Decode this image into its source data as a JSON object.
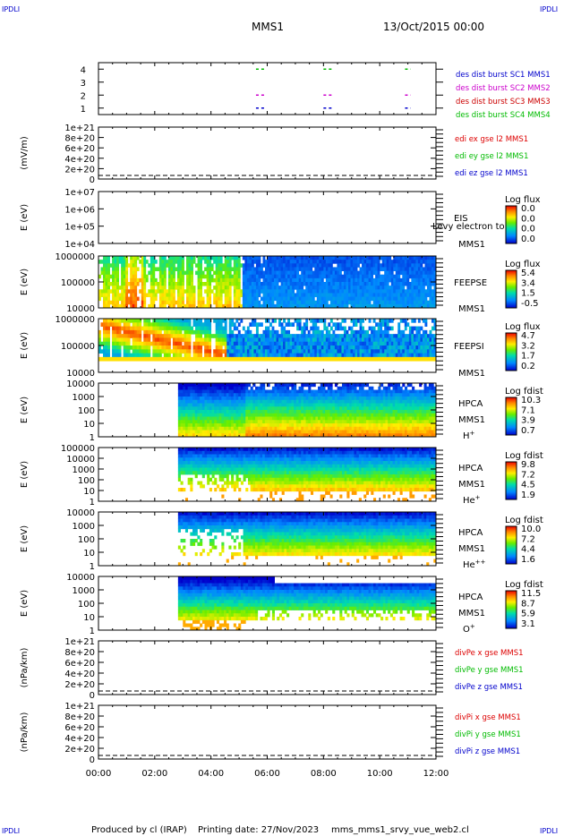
{
  "corner_label": "IPDLI",
  "header": {
    "mission": "MMS1",
    "datetime": "13/Oct/2015 00:00"
  },
  "footer": {
    "produced_by": "Produced by cl (IRAP)",
    "printing_date": "Printing date: 27/Nov/2023",
    "script_name": "mms_mms1_srvy_vue_web2.cl"
  },
  "colors": {
    "mms1": "#0000cc",
    "mms2": "#cc00cc",
    "mms3": "#cc0000",
    "mms4": "#00bb00",
    "x_component": "#dd0000",
    "y_component": "#00bb00",
    "z_component": "#0000cc"
  },
  "chart_data": [
    {
      "type": "scatter",
      "name": "burst-availability",
      "yticks": [
        "1",
        "2",
        "3",
        "4"
      ],
      "ylim": [
        0.5,
        4.5
      ],
      "legend": [
        {
          "label": "des dist burst SC1 MMS1",
          "color": "#0000cc"
        },
        {
          "label": "des dist burst SC2 MMS2",
          "color": "#cc00cc"
        },
        {
          "label": "des dist burst SC3 MMS3",
          "color": "#cc0000"
        },
        {
          "label": "des dist burst SC4 MMS4",
          "color": "#00bb00"
        }
      ],
      "intervals_hours": [
        [
          5.6,
          5.9
        ],
        [
          8.0,
          8.3
        ],
        [
          10.9,
          11.1
        ]
      ]
    },
    {
      "type": "line",
      "name": "edi-electric-field",
      "ylabel": "(mV/m)",
      "yticks": [
        "0",
        "2e+20",
        "4e+20",
        "6e+20",
        "8e+20",
        "1e+21"
      ],
      "legend": [
        {
          "label": "edi ex gse l2 MMS1",
          "color": "#dd0000"
        },
        {
          "label": "edi ey gse l2 MMS1",
          "color": "#00bb00"
        },
        {
          "label": "edi ez gse l2 MMS1",
          "color": "#0000cc"
        }
      ],
      "baseline": 0
    },
    {
      "type": "heatmap",
      "name": "eis",
      "ylabel": "E (eV)",
      "yticks": [
        "1e+04",
        "1e+05",
        "1e+06",
        "1e+07"
      ],
      "instrument": "EIS",
      "overlay_text": "Levy electron to",
      "spacecraft": "MMS1",
      "colorbar_title": "Log flux",
      "colorbar_ticks": [
        "0.0",
        "0.0",
        "0.0",
        "0.0"
      ],
      "empty": true
    },
    {
      "type": "heatmap",
      "name": "feeps-electrons",
      "ylabel": "E (eV)",
      "yticks": [
        "10000",
        "100000",
        "1000000"
      ],
      "instrument": "FEEPSE",
      "spacecraft": "MMS1",
      "colorbar_title": "Log flux",
      "colorbar_ticks": [
        "5.4",
        "3.4",
        "1.5",
        "-0.5"
      ],
      "empty": false
    },
    {
      "type": "heatmap",
      "name": "feeps-ions",
      "ylabel": "E (eV)",
      "yticks": [
        "10000",
        "100000",
        "1000000"
      ],
      "instrument": "FEEPSI",
      "spacecraft": "MMS1",
      "colorbar_title": "Log flux",
      "colorbar_ticks": [
        "4.7",
        "3.2",
        "1.7",
        "0.2"
      ],
      "empty": false
    },
    {
      "type": "heatmap",
      "name": "hpca-h-plus",
      "ylabel": "E (eV)",
      "yticks": [
        "1",
        "10",
        "100",
        "1000",
        "10000"
      ],
      "instrument": "HPCA",
      "spacecraft": "MMS1",
      "species": "H",
      "charge": "+",
      "colorbar_title": "Log fdist",
      "colorbar_ticks": [
        "10.3",
        "7.1",
        "3.9",
        "0.7"
      ],
      "empty": false
    },
    {
      "type": "heatmap",
      "name": "hpca-he-plus",
      "ylabel": "E (eV)",
      "yticks": [
        "1",
        "10",
        "100",
        "1000",
        "10000",
        "100000"
      ],
      "instrument": "HPCA",
      "spacecraft": "MMS1",
      "species": "He",
      "charge": "+",
      "colorbar_title": "Log fdist",
      "colorbar_ticks": [
        "9.8",
        "7.2",
        "4.5",
        "1.9"
      ],
      "empty": false
    },
    {
      "type": "heatmap",
      "name": "hpca-he-plus-plus",
      "ylabel": "E (eV)",
      "yticks": [
        "1",
        "10",
        "100",
        "1000",
        "10000"
      ],
      "instrument": "HPCA",
      "spacecraft": "MMS1",
      "species": "He",
      "charge": "++",
      "colorbar_title": "Log fdist",
      "colorbar_ticks": [
        "10.0",
        "7.2",
        "4.4",
        "1.6"
      ],
      "empty": false
    },
    {
      "type": "heatmap",
      "name": "hpca-o-plus",
      "ylabel": "E (eV)",
      "yticks": [
        "1",
        "10",
        "100",
        "1000",
        "10000"
      ],
      "instrument": "HPCA",
      "spacecraft": "MMS1",
      "species": "O",
      "charge": "+",
      "colorbar_title": "Log fdist",
      "colorbar_ticks": [
        "11.5",
        "8.7",
        "5.9",
        "3.1"
      ],
      "empty": false
    },
    {
      "type": "line",
      "name": "electron-pressure-divergence",
      "ylabel": "(nPa/km)",
      "yticks": [
        "0",
        "2e+20",
        "4e+20",
        "6e+20",
        "8e+20",
        "1e+21"
      ],
      "legend": [
        {
          "label": "divPe x gse MMS1",
          "color": "#dd0000"
        },
        {
          "label": "divPe y gse MMS1",
          "color": "#00bb00"
        },
        {
          "label": "divPe z gse MMS1",
          "color": "#0000cc"
        }
      ],
      "baseline": 0
    },
    {
      "type": "line",
      "name": "ion-pressure-divergence",
      "ylabel": "(nPa/km)",
      "yticks": [
        "0",
        "2e+20",
        "4e+20",
        "6e+20",
        "8e+20",
        "1e+21"
      ],
      "legend": [
        {
          "label": "divPi x gse MMS1",
          "color": "#dd0000"
        },
        {
          "label": "divPi y gse MMS1",
          "color": "#00bb00"
        },
        {
          "label": "divPi z gse MMS1",
          "color": "#0000cc"
        }
      ],
      "baseline": 0
    }
  ],
  "x_axis": {
    "ticks": [
      "00:00",
      "02:00",
      "04:00",
      "06:00",
      "08:00",
      "10:00",
      "12:00"
    ],
    "xlim_hours": [
      0,
      12
    ]
  }
}
